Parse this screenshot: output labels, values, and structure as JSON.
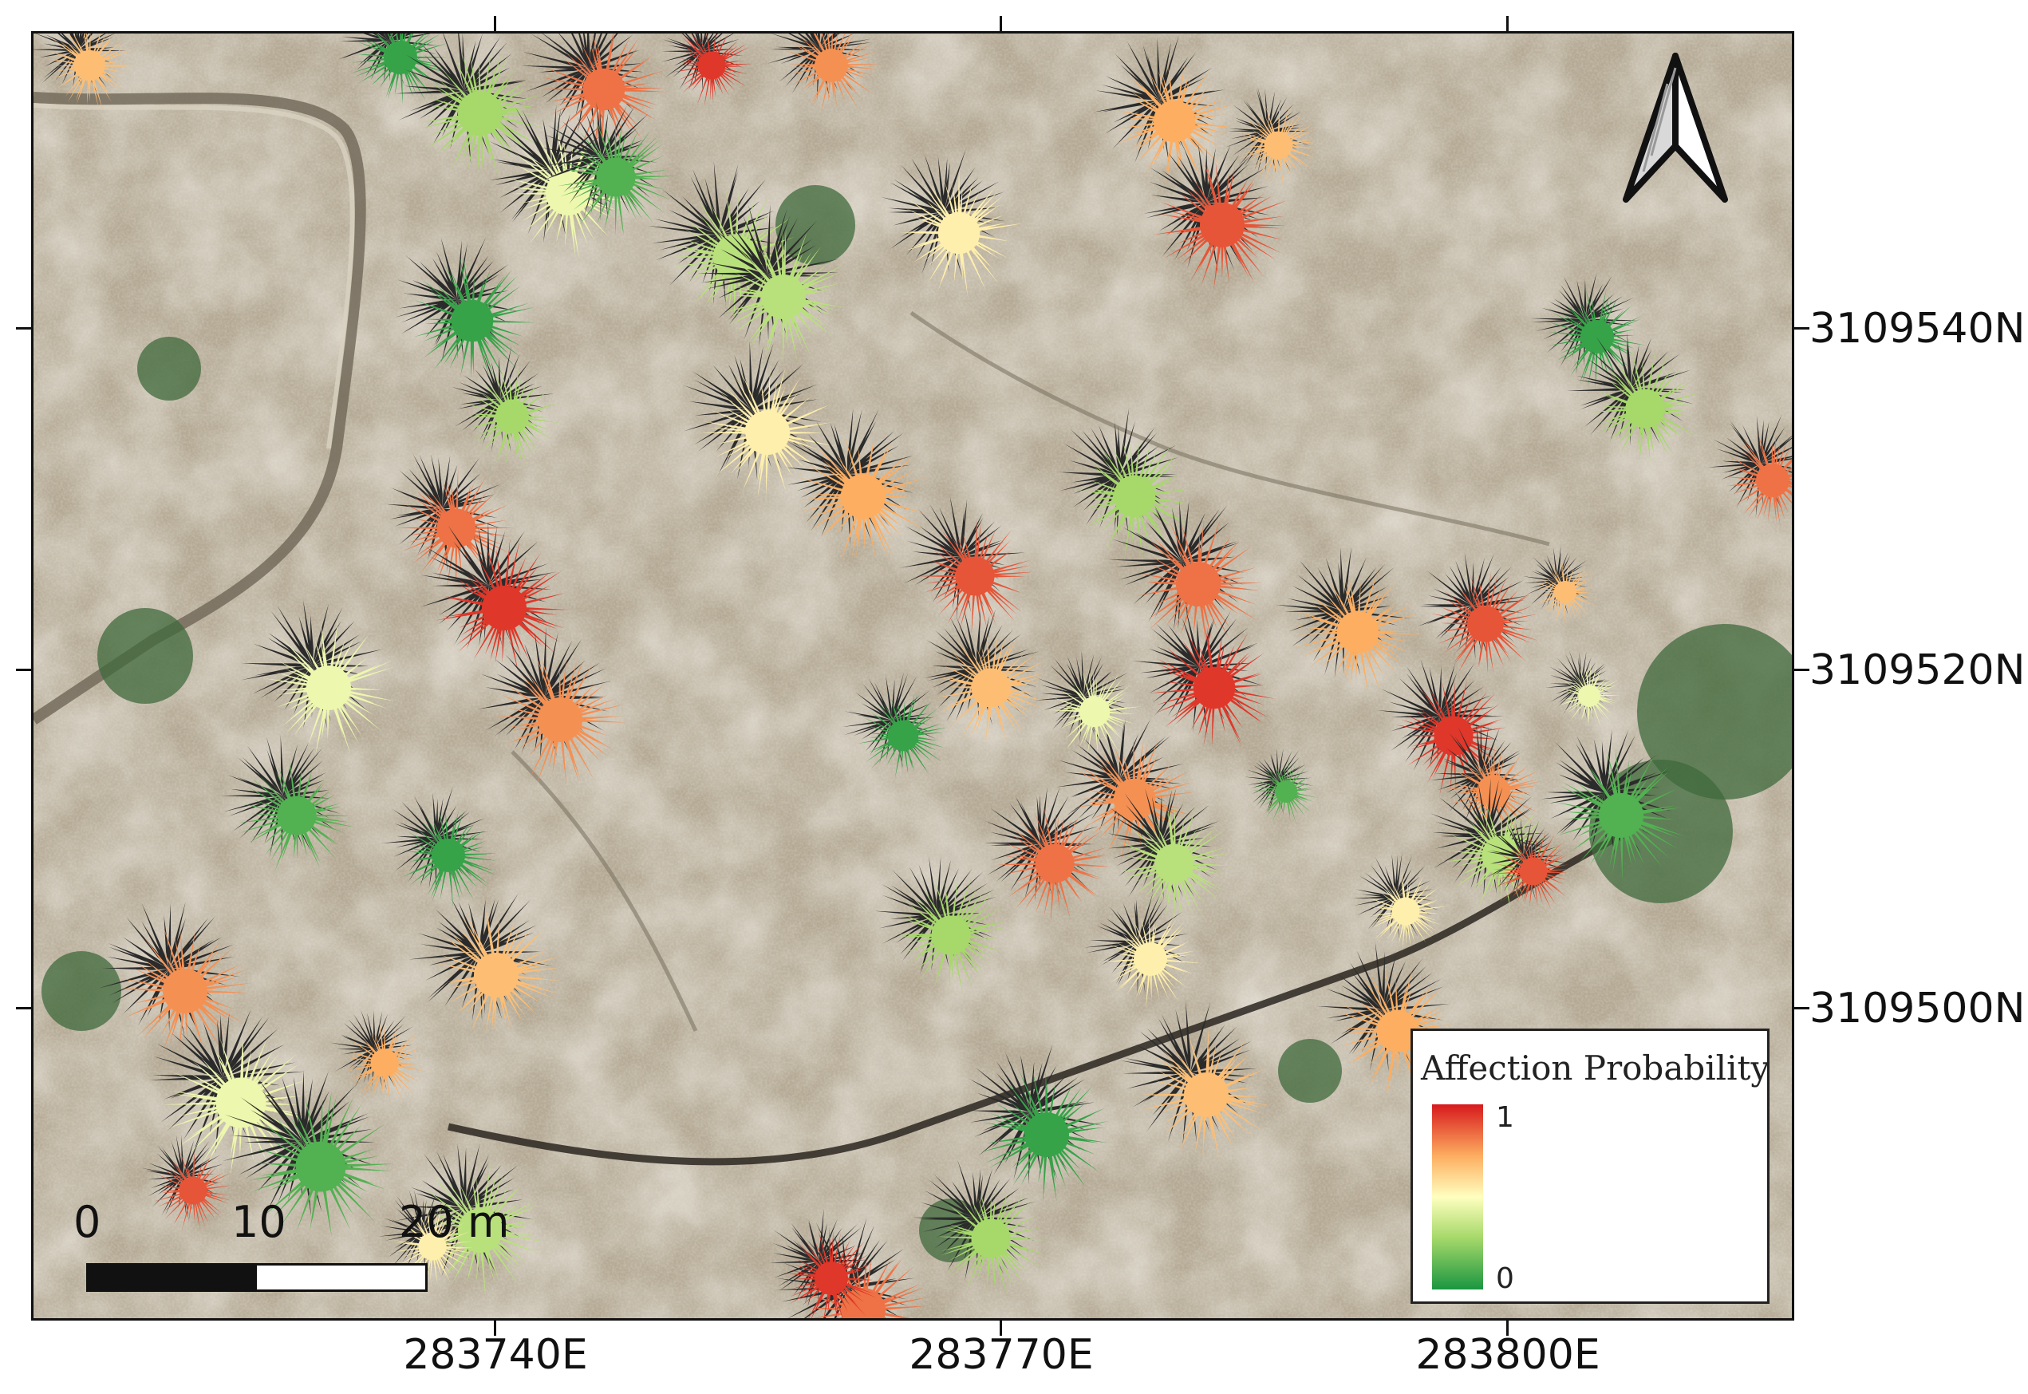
{
  "map": {
    "x_ticks": [
      "283740E",
      "283770E",
      "283800E"
    ],
    "y_ticks": [
      "3109540N",
      "3109520N",
      "3109500N"
    ]
  },
  "legend": {
    "title": "Affection Probability",
    "max_label": "1",
    "min_label": "0",
    "ramp_colors": [
      "#d7191c",
      "#fdae61",
      "#ffffbf",
      "#a6d96a",
      "#1a9641"
    ]
  },
  "scale_bar": {
    "labels": [
      "0",
      "10",
      "20 m"
    ]
  },
  "north_arrow": {
    "icon": "north-arrow-icon"
  },
  "palms": [
    {
      "p": 0.7
    },
    {
      "p": 0.05
    },
    {
      "p": 0.25
    },
    {
      "p": 0.85
    },
    {
      "p": 0.95
    },
    {
      "p": 0.8
    },
    {
      "p": 0.45
    },
    {
      "p": 0.1
    },
    {
      "p": 0.3
    },
    {
      "p": 0.55
    },
    {
      "p": 0.75
    },
    {
      "p": 0.9
    }
  ]
}
